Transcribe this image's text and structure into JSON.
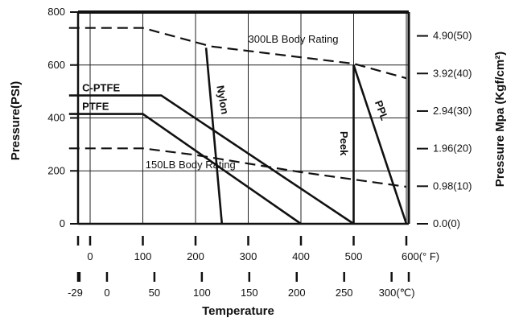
{
  "chart_data": {
    "type": "line",
    "ylabel": "Pressure(PSI)",
    "y2label": "Pressure Mpa (Kgf/cm²)",
    "xlabel": "Temperature",
    "ylim": [
      0,
      800
    ],
    "xlim": [
      -40,
      600
    ],
    "y_ticks": [
      "0",
      "200",
      "400",
      "600",
      "800"
    ],
    "y2_ticks": [
      {
        "psi": 0,
        "label": "0.0(0)"
      },
      {
        "psi": 142,
        "label": "0.98(10)"
      },
      {
        "psi": 284,
        "label": "1.96(20)"
      },
      {
        "psi": 426,
        "label": "2.94(30)"
      },
      {
        "psi": 568,
        "label": "3.92(40)"
      },
      {
        "psi": 710,
        "label": "4.90(50)"
      }
    ],
    "x_ticks_f": [
      {
        "x": 0,
        "label": "0"
      },
      {
        "x": 100,
        "label": "100"
      },
      {
        "x": 200,
        "label": "200"
      },
      {
        "x": 300,
        "label": "300"
      },
      {
        "x": 400,
        "label": "400"
      },
      {
        "x": 500,
        "label": "500"
      },
      {
        "x": 600,
        "label": "600(° F)"
      }
    ],
    "x_ticks_c": [
      {
        "x": -20,
        "label": "-29"
      },
      {
        "x": 32,
        "label": "0"
      },
      {
        "x": 122,
        "label": "50"
      },
      {
        "x": 212,
        "label": "100"
      },
      {
        "x": 302,
        "label": "150"
      },
      {
        "x": 392,
        "label": "200"
      },
      {
        "x": 482,
        "label": "250"
      },
      {
        "x": 572,
        "label": "300(℃)"
      }
    ],
    "series": [
      {
        "name": "300LB Body Rating",
        "style": "dashed",
        "points": [
          [
            -40,
            740
          ],
          [
            100,
            740
          ],
          [
            230,
            670
          ],
          [
            500,
            605
          ],
          [
            600,
            550
          ]
        ],
        "label_at": [
          300,
          685
        ]
      },
      {
        "name": "150LB Body Rating",
        "style": "dashed",
        "points": [
          [
            -40,
            285
          ],
          [
            100,
            285
          ],
          [
            200,
            260
          ],
          [
            400,
            195
          ],
          [
            600,
            140
          ]
        ],
        "label_at": [
          105,
          210
        ]
      },
      {
        "name": "C-PTFE",
        "style": "solid",
        "points": [
          [
            -40,
            485
          ],
          [
            135,
            485
          ],
          [
            500,
            0
          ]
        ],
        "label_at": [
          -15,
          500
        ]
      },
      {
        "name": "PTFE",
        "style": "solid",
        "points": [
          [
            -40,
            415
          ],
          [
            100,
            415
          ],
          [
            400,
            0
          ]
        ],
        "label_at": [
          -15,
          430
        ]
      },
      {
        "name": "Nylon",
        "style": "solid",
        "points": [
          [
            220,
            665
          ],
          [
            250,
            0
          ]
        ],
        "label_at": [
          240,
          520
        ]
      },
      {
        "name": "Peek",
        "style": "solid",
        "points": [
          [
            500,
            600
          ],
          [
            500,
            0
          ]
        ],
        "label_at": [
          475,
          350
        ]
      },
      {
        "name": "PPL",
        "style": "solid",
        "points": [
          [
            500,
            600
          ],
          [
            600,
            0
          ]
        ],
        "label_at": [
          540,
          460
        ]
      }
    ]
  }
}
